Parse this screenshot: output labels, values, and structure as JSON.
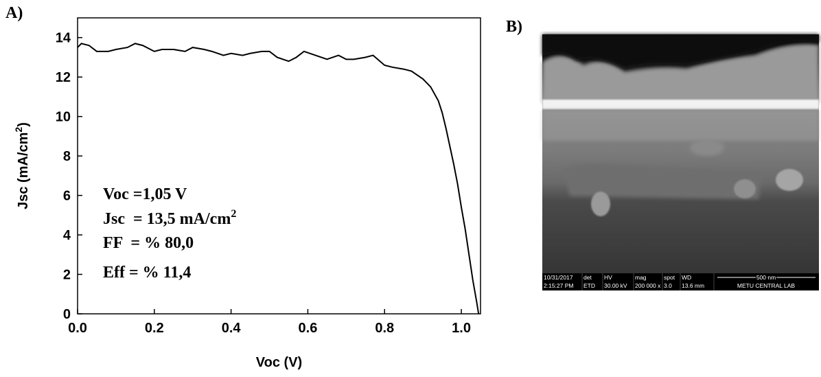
{
  "chart_data": {
    "type": "line",
    "panel_label": "A)",
    "x_label": "Voc (V)",
    "y_label": {
      "text": "Jsc (mA/cm",
      "sup": "2",
      "end": ")"
    },
    "x": [
      0,
      0.01,
      0.03,
      0.05,
      0.08,
      0.1,
      0.13,
      0.15,
      0.17,
      0.2,
      0.22,
      0.25,
      0.28,
      0.3,
      0.33,
      0.35,
      0.38,
      0.4,
      0.43,
      0.45,
      0.48,
      0.5,
      0.52,
      0.55,
      0.57,
      0.59,
      0.62,
      0.65,
      0.68,
      0.7,
      0.72,
      0.75,
      0.77,
      0.8,
      0.82,
      0.85,
      0.87,
      0.9,
      0.92,
      0.94,
      0.95,
      0.96,
      0.97,
      0.98,
      0.99,
      1.0,
      1.01,
      1.02,
      1.03,
      1.04,
      1.045
    ],
    "series": [
      {
        "color": "#000000",
        "values": [
          13.5,
          13.7,
          13.6,
          13.3,
          13.3,
          13.4,
          13.5,
          13.7,
          13.6,
          13.3,
          13.4,
          13.4,
          13.3,
          13.5,
          13.4,
          13.3,
          13.1,
          13.2,
          13.1,
          13.2,
          13.3,
          13.3,
          13.0,
          12.8,
          13.0,
          13.3,
          13.1,
          12.9,
          13.1,
          12.9,
          12.9,
          13.0,
          13.1,
          12.6,
          12.5,
          12.4,
          12.3,
          11.9,
          11.5,
          10.8,
          10.2,
          9.4,
          8.5,
          7.6,
          6.6,
          5.4,
          4.3,
          3.0,
          1.7,
          0.6,
          0
        ]
      }
    ],
    "xlim": [
      0,
      1.05
    ],
    "ylim": [
      0,
      15
    ],
    "xticks": [
      {
        "value": 0,
        "label": "0.0"
      },
      {
        "value": 0.2,
        "label": "0.2"
      },
      {
        "value": 0.4,
        "label": "0.4"
      },
      {
        "value": 0.6,
        "label": "0.6"
      },
      {
        "value": 0.8,
        "label": "0.8"
      },
      {
        "value": 1,
        "label": "1.0"
      }
    ],
    "yticks": [
      0,
      2,
      4,
      6,
      8,
      10,
      12,
      14
    ],
    "annotations": [
      {
        "text": "Voc =1,05 V"
      },
      {
        "text": "Jsc  = 13,5 mA/cm",
        "sup": "2"
      },
      {
        "text": "FF  = % 80,0"
      },
      {
        "text": "Eff = % 11,4"
      }
    ]
  },
  "image": {
    "panel_label": "B)",
    "infobar": [
      [
        "10/31/2017",
        "2:15:27 PM"
      ],
      [
        "det",
        "ETD"
      ],
      [
        "HV",
        "30.00 kV"
      ],
      [
        "mag",
        "200 000 x"
      ],
      [
        "spot",
        "3.0"
      ],
      [
        "WD",
        "13.6 mm"
      ]
    ],
    "scale": "500 nm",
    "lab": "METU CENTRAL LAB"
  }
}
